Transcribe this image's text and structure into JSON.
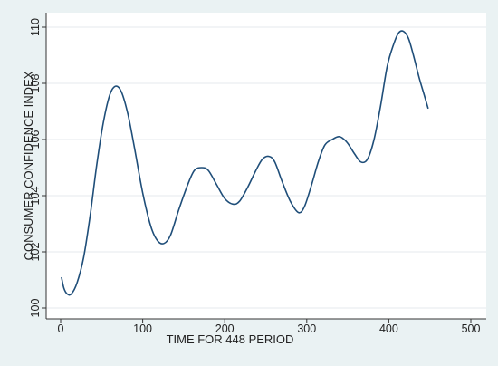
{
  "chart_data": {
    "type": "line",
    "title": "",
    "xlabel": "TIME FOR 448 PERIOD",
    "ylabel": "CONSUMER CONFIDENCE INDEX",
    "xlim": [
      0,
      500
    ],
    "ylim": [
      100,
      110
    ],
    "xticks": [
      0,
      100,
      200,
      300,
      400,
      500
    ],
    "yticks": [
      100,
      102,
      104,
      106,
      108,
      110
    ],
    "xtick_labels": [
      "0",
      "100",
      "200",
      "300",
      "400",
      "500"
    ],
    "ytick_labels": [
      "100",
      "102",
      "104",
      "106",
      "108",
      "110"
    ],
    "grid": true,
    "legend": "none",
    "series": [
      {
        "name": "",
        "color": "#1f4e79",
        "points": [
          [
            1,
            101.1
          ],
          [
            4,
            100.7
          ],
          [
            8,
            100.5
          ],
          [
            13,
            100.5
          ],
          [
            20,
            100.9
          ],
          [
            28,
            101.8
          ],
          [
            36,
            103.3
          ],
          [
            44,
            105.1
          ],
          [
            52,
            106.6
          ],
          [
            60,
            107.6
          ],
          [
            67,
            107.9
          ],
          [
            74,
            107.7
          ],
          [
            82,
            106.9
          ],
          [
            90,
            105.7
          ],
          [
            100,
            104.1
          ],
          [
            110,
            102.9
          ],
          [
            118,
            102.4
          ],
          [
            126,
            102.3
          ],
          [
            134,
            102.6
          ],
          [
            144,
            103.5
          ],
          [
            155,
            104.4
          ],
          [
            163,
            104.9
          ],
          [
            172,
            105.0
          ],
          [
            180,
            104.9
          ],
          [
            190,
            104.4
          ],
          [
            200,
            103.9
          ],
          [
            210,
            103.7
          ],
          [
            218,
            103.8
          ],
          [
            228,
            104.3
          ],
          [
            238,
            104.9
          ],
          [
            246,
            105.3
          ],
          [
            254,
            105.4
          ],
          [
            261,
            105.2
          ],
          [
            270,
            104.5
          ],
          [
            280,
            103.8
          ],
          [
            290,
            103.4
          ],
          [
            297,
            103.6
          ],
          [
            305,
            104.3
          ],
          [
            314,
            105.2
          ],
          [
            322,
            105.8
          ],
          [
            331,
            106.0
          ],
          [
            340,
            106.1
          ],
          [
            349,
            105.9
          ],
          [
            358,
            105.5
          ],
          [
            366,
            105.2
          ],
          [
            374,
            105.3
          ],
          [
            382,
            106.0
          ],
          [
            390,
            107.2
          ],
          [
            398,
            108.6
          ],
          [
            406,
            109.4
          ],
          [
            412,
            109.8
          ],
          [
            418,
            109.85
          ],
          [
            424,
            109.6
          ],
          [
            430,
            109.0
          ],
          [
            437,
            108.2
          ],
          [
            443,
            107.6
          ],
          [
            448,
            107.1
          ]
        ]
      }
    ]
  }
}
